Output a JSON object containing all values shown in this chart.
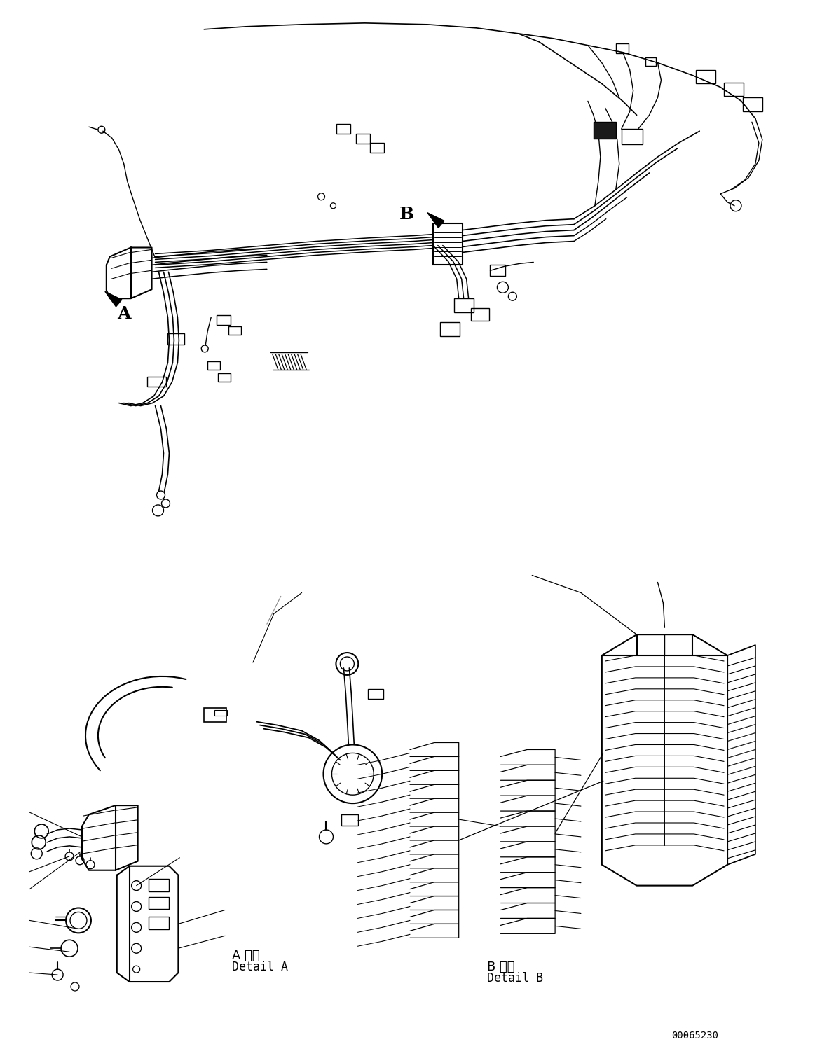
{
  "background_color": "#ffffff",
  "line_color": "#000000",
  "label_A": "A",
  "label_B": "B",
  "detail_a_jp": "A 詳細",
  "detail_a_en": "Detail A",
  "detail_b_jp": "B 詳細",
  "detail_b_en": "Detail B",
  "part_number": "00065230",
  "figsize": [
    11.63,
    14.88
  ],
  "dpi": 100,
  "title_color": "#000000"
}
